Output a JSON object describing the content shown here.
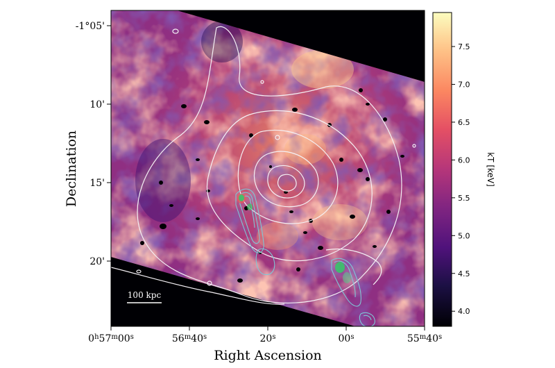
{
  "chart_data": {
    "type": "heatmap",
    "xlabel": "Right Ascension",
    "ylabel": "Declination",
    "x_ticks": [
      {
        "value": "0h57m00s",
        "parts": [
          [
            "0",
            ""
          ],
          [
            "h",
            "sup"
          ],
          [
            "57",
            ""
          ],
          [
            "m",
            "sup"
          ],
          [
            "00",
            ""
          ],
          [
            "s",
            "sup"
          ]
        ]
      },
      {
        "value": "56m40s",
        "parts": [
          [
            "56",
            ""
          ],
          [
            "m",
            "sup"
          ],
          [
            "40",
            ""
          ],
          [
            "s",
            "sup"
          ]
        ]
      },
      {
        "value": "20s",
        "parts": [
          [
            "20",
            ""
          ],
          [
            "s",
            "sup"
          ]
        ]
      },
      {
        "value": "00s",
        "parts": [
          [
            "00",
            ""
          ],
          [
            "s",
            "sup"
          ]
        ]
      },
      {
        "value": "55m40s",
        "parts": [
          [
            "55",
            ""
          ],
          [
            "m",
            "sup"
          ],
          [
            "40",
            ""
          ],
          [
            "s",
            "sup"
          ]
        ]
      }
    ],
    "y_ticks": [
      "-1°05'",
      "10'",
      "15'",
      "20'"
    ],
    "colorbar": {
      "label": "kT [keV]",
      "ticks": [
        4.0,
        4.5,
        5.0,
        5.5,
        6.0,
        6.5,
        7.0,
        7.5
      ],
      "range": [
        3.8,
        7.95
      ],
      "colormap": "magma"
    },
    "scalebar_label": "100 kpc",
    "contour_colors": {
      "xray": "#f4f0f4",
      "radio": "#7fc6d6",
      "radio_core": "#39c46a"
    },
    "grid": false
  }
}
